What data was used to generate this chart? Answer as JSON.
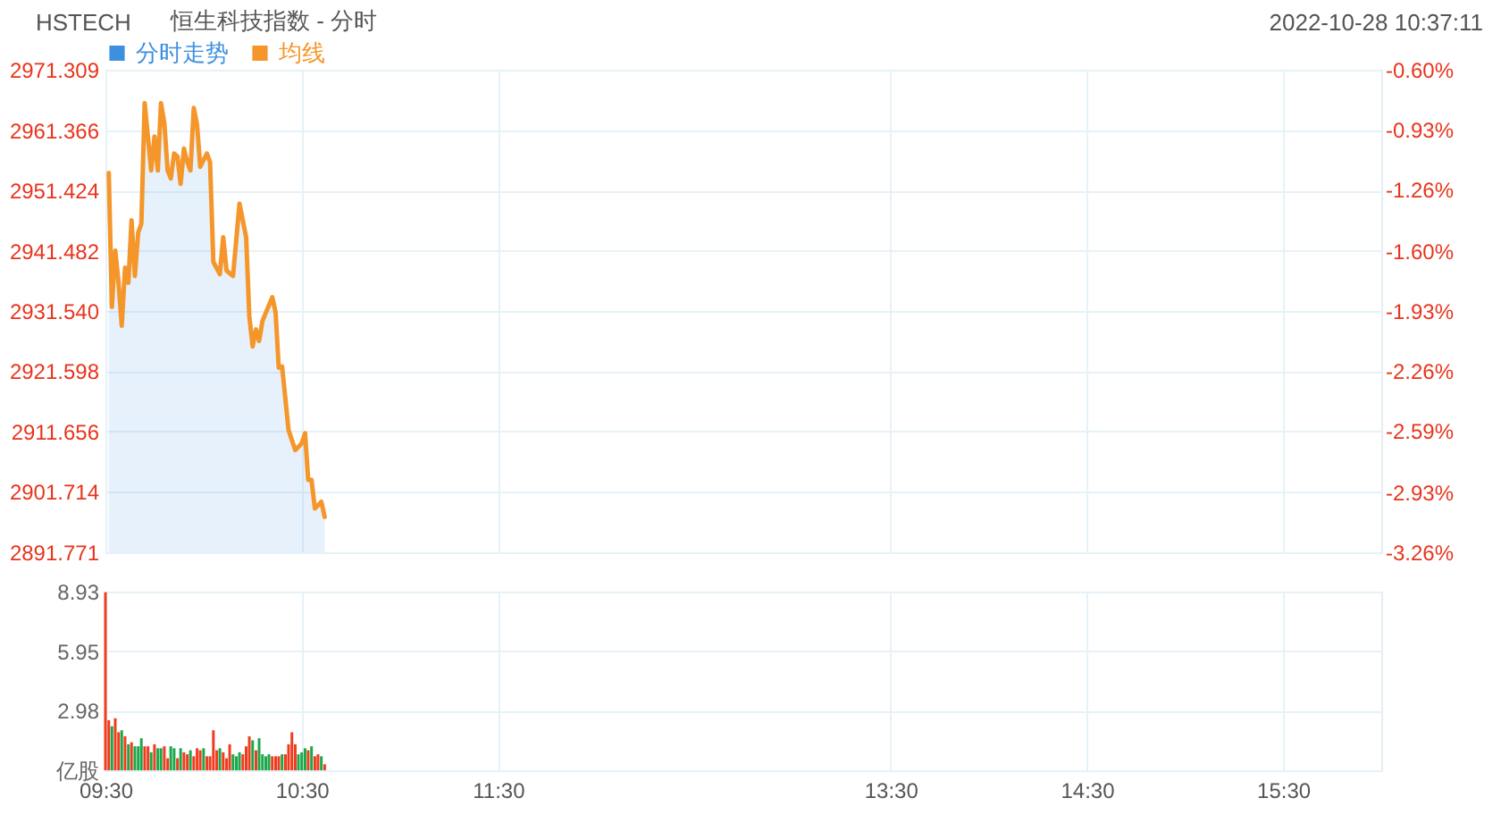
{
  "chart_data": [
    {
      "type": "line",
      "title": "HSTECH",
      "subtitle": "恒生科技指数 - 分时",
      "annotations": [
        "2022-10-28 10:37:11"
      ],
      "x": [
        9.517,
        9.533,
        9.55,
        9.567,
        9.583,
        9.6,
        9.617,
        9.633,
        9.65,
        9.667,
        9.683,
        9.7,
        9.733,
        9.75,
        9.767,
        9.783,
        9.8,
        9.817,
        9.833,
        9.85,
        9.867,
        9.883,
        9.9,
        9.917,
        9.933,
        9.95,
        9.967,
        9.983,
        10.017,
        10.033,
        10.05,
        10.083,
        10.1,
        10.117,
        10.15,
        10.183,
        10.217,
        10.233,
        10.25,
        10.267,
        10.283,
        10.3,
        10.35,
        10.367,
        10.383,
        10.4,
        10.433,
        10.467,
        10.5,
        10.517,
        10.533,
        10.55,
        10.567,
        10.6,
        10.617
      ],
      "xlim": [
        9.5,
        16
      ],
      "xticks": [
        {
          "value": 9.5,
          "label": null
        },
        {
          "value": 10.5,
          "label": null
        },
        {
          "value": 11.5,
          "label": null
        },
        {
          "value": 13.5,
          "label": null
        },
        {
          "value": 14.5,
          "label": null
        },
        {
          "value": 15.5,
          "label": null
        }
      ],
      "ylim": [
        2891.771,
        2971.309
      ],
      "yticks": [
        2891.771,
        2901.714,
        2911.656,
        2921.598,
        {
          "value": 2931.54,
          "label": "2931.540"
        },
        2941.482,
        2951.424,
        2961.366,
        2971.309
      ],
      "y2lim": [
        -3.26,
        -0.6
      ],
      "y2ticks": [
        {
          "value": -3.26,
          "label": "-3.26%"
        },
        {
          "value": -2.93,
          "label": "-2.93%"
        },
        {
          "value": -2.59,
          "label": "-2.59%"
        },
        {
          "value": -2.26,
          "label": "-2.26%"
        },
        {
          "value": -1.93,
          "label": "-1.93%"
        },
        {
          "value": -1.6,
          "label": "-1.60%"
        },
        {
          "value": -1.26,
          "label": "-1.26%"
        },
        {
          "value": -0.93,
          "label": "-0.93%"
        },
        {
          "value": -0.6,
          "label": "-0.60%"
        }
      ],
      "series": [
        {
          "name": "分时走势",
          "type": "area",
          "color": "#3d8fe0",
          "values": [
            2954.3,
            2932.2,
            2941.5,
            2936.2,
            2929.1,
            2938.7,
            2936.2,
            2946.5,
            2937.3,
            2944.5,
            2945.9,
            2965.8,
            2954.7,
            2960.3,
            2954.7,
            2965.8,
            2962.5,
            2954.7,
            2953.4,
            2957.5,
            2957.0,
            2952.5,
            2958.3,
            2956.1,
            2954.7,
            2965.0,
            2962.2,
            2955.3,
            2957.5,
            2956.1,
            2939.6,
            2937.6,
            2943.7,
            2938.2,
            2937.3,
            2949.2,
            2943.7,
            2930.7,
            2925.7,
            2928.5,
            2926.6,
            2929.9,
            2933.8,
            2931.3,
            2922.2,
            2922.4,
            2911.9,
            2908.6,
            2909.7,
            2911.4,
            2903.7,
            2903.7,
            2899.0,
            2900.1,
            2897.6
          ]
        },
        {
          "name": "均线",
          "type": "line",
          "color": "#f5962a",
          "values": [
            2954.3,
            2932.2,
            2941.5,
            2936.2,
            2929.1,
            2938.7,
            2936.2,
            2946.5,
            2937.3,
            2944.5,
            2945.9,
            2965.8,
            2954.7,
            2960.3,
            2954.7,
            2965.8,
            2962.5,
            2954.7,
            2953.4,
            2957.5,
            2957.0,
            2952.5,
            2958.3,
            2956.1,
            2954.7,
            2965.0,
            2962.2,
            2955.3,
            2957.5,
            2956.1,
            2939.6,
            2937.6,
            2943.7,
            2938.2,
            2937.3,
            2949.2,
            2943.7,
            2930.7,
            2925.7,
            2928.5,
            2926.6,
            2929.9,
            2933.8,
            2931.3,
            2922.2,
            2922.4,
            2911.9,
            2908.6,
            2909.7,
            2911.4,
            2903.7,
            2903.7,
            2899.0,
            2900.1,
            2897.6
          ]
        }
      ],
      "legend": "top left",
      "grid": true,
      "tick_labels": "y"
    },
    {
      "type": "bar",
      "x": [
        9.5,
        9.517,
        9.533,
        9.55,
        9.567,
        9.583,
        9.6,
        9.617,
        9.633,
        9.65,
        9.667,
        9.683,
        9.7,
        9.717,
        9.733,
        9.75,
        9.767,
        9.783,
        9.8,
        9.817,
        9.833,
        9.85,
        9.867,
        9.883,
        9.9,
        9.917,
        9.933,
        9.95,
        9.967,
        9.983,
        10,
        10.017,
        10.033,
        10.05,
        10.067,
        10.083,
        10.1,
        10.117,
        10.133,
        10.15,
        10.167,
        10.183,
        10.2,
        10.217,
        10.233,
        10.25,
        10.267,
        10.283,
        10.3,
        10.317,
        10.333,
        10.35,
        10.367,
        10.383,
        10.4,
        10.417,
        10.433,
        10.45,
        10.467,
        10.483,
        10.5,
        10.517,
        10.533,
        10.55,
        10.567,
        10.583,
        10.6,
        10.617
      ],
      "values": [
        8.9,
        2.5,
        2.2,
        2.6,
        1.9,
        2.0,
        1.7,
        1.3,
        1.4,
        1.2,
        1.2,
        1.6,
        1.2,
        1.2,
        0.9,
        1.3,
        1.1,
        1.1,
        1.2,
        0.6,
        1.2,
        1.1,
        0.6,
        1.1,
        0.9,
        0.8,
        1.0,
        0.7,
        1.1,
        1.0,
        1.1,
        0.7,
        0.7,
        2.0,
        1.0,
        1.1,
        0.9,
        0.6,
        1.3,
        0.8,
        0.7,
        0.9,
        0.8,
        1.2,
        1.7,
        1.5,
        1.0,
        1.6,
        0.8,
        0.7,
        0.8,
        0.7,
        0.7,
        0.7,
        0.8,
        0.8,
        1.3,
        1.9,
        1.3,
        0.8,
        0.9,
        1.1,
        1.0,
        1.2,
        0.7,
        0.8,
        0.7,
        0.3
      ],
      "colors": [
        "#f03c1e",
        "#f03c1e",
        "#1aa84a",
        "#f03c1e",
        "#f03c1e",
        "#1aa84a",
        "#f03c1e",
        "#1aa84a",
        "#f03c1e",
        "#1aa84a",
        "#1aa84a",
        "#1aa84a",
        "#f03c1e",
        "#f03c1e",
        "#1aa84a",
        "#f03c1e",
        "#1aa84a",
        "#1aa84a",
        "#f03c1e",
        "#f03c1e",
        "#1aa84a",
        "#1aa84a",
        "#f03c1e",
        "#1aa84a",
        "#f03c1e",
        "#f03c1e",
        "#1aa84a",
        "#f03c1e",
        "#f03c1e",
        "#f03c1e",
        "#1aa84a",
        "#f03c1e",
        "#f03c1e",
        "#f03c1e",
        "#f03c1e",
        "#1aa84a",
        "#f03c1e",
        "#f03c1e",
        "#f03c1e",
        "#1aa84a",
        "#1aa84a",
        "#1aa84a",
        "#f03c1e",
        "#f03c1e",
        "#f03c1e",
        "#1aa84a",
        "#f03c1e",
        "#1aa84a",
        "#1aa84a",
        "#1aa84a",
        "#1aa84a",
        "#f03c1e",
        "#f03c1e",
        "#f03c1e",
        "#1aa84a",
        "#f03c1e",
        "#f03c1e",
        "#f03c1e",
        "#f03c1e",
        "#1aa84a",
        "#1aa84a",
        "#1aa84a",
        "#f03c1e",
        "#1aa84a",
        "#f03c1e",
        "#f03c1e",
        "#1aa84a",
        "#f03c1e"
      ],
      "xlim": [
        9.5,
        16
      ],
      "xticks": [
        {
          "value": 9.5,
          "label": "09:30"
        },
        {
          "value": 10.5,
          "label": "10:30"
        },
        {
          "value": 11.5,
          "label": "11:30"
        },
        {
          "value": 13.5,
          "label": "13:30"
        },
        {
          "value": 14.5,
          "label": "14:30"
        },
        {
          "value": 15.5,
          "label": "15:30"
        }
      ],
      "ylim": [
        0,
        8.93
      ],
      "yticks": [
        {
          "value": 0,
          "label": "亿股"
        },
        2.98,
        5.95,
        8.93
      ],
      "grid": true
    }
  ]
}
